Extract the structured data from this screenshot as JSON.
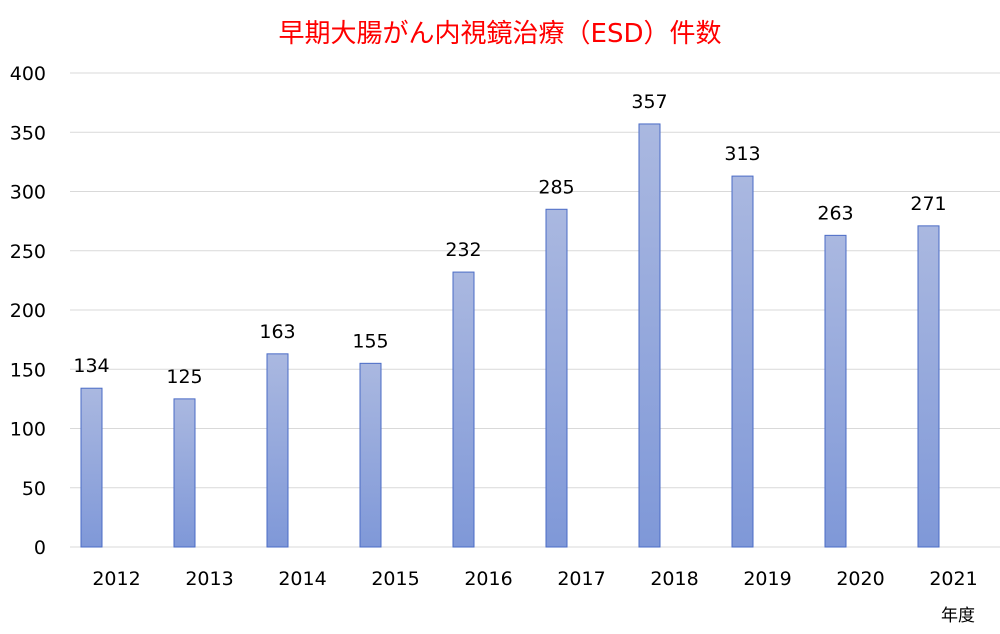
{
  "chart_data": {
    "type": "bar",
    "title": "早期大腸がん内視鏡治療（ESD）件数",
    "xlabel": "年度",
    "ylabel": "",
    "categories": [
      "2012",
      "2013",
      "2014",
      "2015",
      "2016",
      "2017",
      "2018",
      "2019",
      "2020",
      "2021"
    ],
    "values": [
      134,
      125,
      163,
      155,
      232,
      285,
      357,
      313,
      263,
      271
    ],
    "ylim": [
      0,
      400
    ],
    "yticks": [
      0,
      50,
      100,
      150,
      200,
      250,
      300,
      350,
      400
    ],
    "grid": true,
    "legend": "none",
    "bar_color_top": "#aab8e0",
    "bar_color_bottom": "#7f98d8",
    "bar_border": "#4a6bc6",
    "title_color": "#ff0000",
    "grid_color": "#d9d9d9"
  }
}
